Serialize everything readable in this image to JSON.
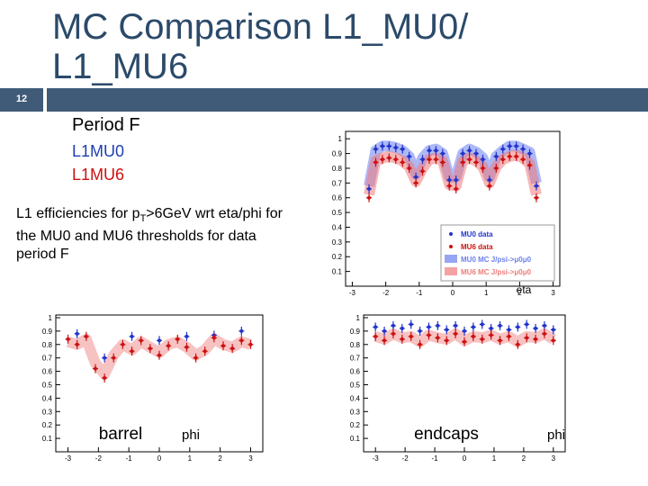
{
  "slide_number": "12",
  "title": {
    "prefix": "MC Comparison ",
    "part1": "L1_MU0/",
    "part2": "L1_MU6"
  },
  "period": "Period F",
  "thresholds": [
    "L1MU0",
    "L1MU6"
  ],
  "description": {
    "start": "L1 efficiencies for p",
    "sub": "T",
    "end": ">6GeV wrt eta/phi for the MU0 and MU6 thresholds for data period F"
  },
  "plots": [
    {
      "type": "scatter",
      "x_label": "eta",
      "xlim": [
        -3.2,
        3.2
      ],
      "ylim": [
        0,
        1.05
      ],
      "xticks": [
        -3,
        -2,
        -1,
        0,
        1,
        2,
        3
      ],
      "yticks": [
        0.1,
        0.2,
        0.3,
        0.4,
        0.5,
        0.6,
        0.7,
        0.8,
        0.9,
        1
      ],
      "series": [
        {
          "name": "MU0 MC J/psi->μ0μ0",
          "kind": "band",
          "color": "#6a7ff0",
          "x": [
            -2.5,
            -2.3,
            -2.1,
            -1.9,
            -1.7,
            -1.5,
            -1.3,
            -1.1,
            -0.9,
            -0.7,
            -0.5,
            -0.3,
            -0.1,
            0.1,
            0.3,
            0.5,
            0.7,
            0.9,
            1.1,
            1.3,
            1.5,
            1.7,
            1.9,
            2.1,
            2.3,
            2.5
          ],
          "values": [
            0.68,
            0.92,
            0.95,
            0.95,
            0.94,
            0.92,
            0.88,
            0.76,
            0.87,
            0.92,
            0.93,
            0.9,
            0.74,
            0.74,
            0.9,
            0.93,
            0.91,
            0.87,
            0.74,
            0.88,
            0.92,
            0.95,
            0.95,
            0.93,
            0.91,
            0.7
          ]
        },
        {
          "name": "MU6 MC J/psi->μ0μ0",
          "kind": "band",
          "color": "#f07a7a",
          "x": [
            -2.5,
            -2.3,
            -2.1,
            -1.9,
            -1.7,
            -1.5,
            -1.3,
            -1.1,
            -0.9,
            -0.7,
            -0.5,
            -0.3,
            -0.1,
            0.1,
            0.3,
            0.5,
            0.7,
            0.9,
            1.1,
            1.3,
            1.5,
            1.7,
            1.9,
            2.1,
            2.3,
            2.5
          ],
          "values": [
            0.62,
            0.85,
            0.87,
            0.88,
            0.87,
            0.85,
            0.81,
            0.71,
            0.8,
            0.86,
            0.87,
            0.85,
            0.69,
            0.68,
            0.85,
            0.87,
            0.85,
            0.81,
            0.7,
            0.81,
            0.86,
            0.88,
            0.89,
            0.87,
            0.83,
            0.62
          ]
        },
        {
          "name": "MU0 data",
          "kind": "points",
          "color": "#2233cc",
          "x": [
            -2.5,
            -2.3,
            -2.1,
            -1.9,
            -1.7,
            -1.5,
            -1.3,
            -1.1,
            -0.9,
            -0.7,
            -0.5,
            -0.3,
            -0.1,
            0.1,
            0.3,
            0.5,
            0.7,
            0.9,
            1.1,
            1.3,
            1.5,
            1.7,
            1.9,
            2.1,
            2.3,
            2.5
          ],
          "values": [
            0.66,
            0.93,
            0.95,
            0.95,
            0.94,
            0.93,
            0.88,
            0.74,
            0.86,
            0.92,
            0.92,
            0.9,
            0.72,
            0.72,
            0.9,
            0.92,
            0.9,
            0.86,
            0.72,
            0.88,
            0.93,
            0.95,
            0.95,
            0.93,
            0.9,
            0.68
          ]
        },
        {
          "name": "MU6 data",
          "kind": "points",
          "color": "#cc1111",
          "x": [
            -2.5,
            -2.3,
            -2.1,
            -1.9,
            -1.7,
            -1.5,
            -1.3,
            -1.1,
            -0.9,
            -0.7,
            -0.5,
            -0.3,
            -0.1,
            0.1,
            0.3,
            0.5,
            0.7,
            0.9,
            1.1,
            1.3,
            1.5,
            1.7,
            1.9,
            2.1,
            2.3,
            2.5
          ],
          "values": [
            0.6,
            0.84,
            0.86,
            0.87,
            0.86,
            0.84,
            0.8,
            0.7,
            0.78,
            0.86,
            0.86,
            0.84,
            0.68,
            0.66,
            0.84,
            0.86,
            0.84,
            0.8,
            0.68,
            0.8,
            0.86,
            0.88,
            0.88,
            0.86,
            0.82,
            0.6
          ]
        }
      ]
    },
    {
      "type": "scatter",
      "label": "barrel",
      "x_label": "phi",
      "xlim": [
        -3.4,
        3.4
      ],
      "ylim": [
        0,
        1.02
      ],
      "xticks": [
        -3,
        -2,
        -1,
        0,
        1,
        2,
        3
      ],
      "yticks": [
        0.1,
        0.2,
        0.3,
        0.4,
        0.5,
        0.6,
        0.7,
        0.8,
        0.9,
        1
      ],
      "series": [
        {
          "kind": "band",
          "color": "#f09090",
          "x": [
            -3.0,
            -2.7,
            -2.4,
            -2.1,
            -1.8,
            -1.5,
            -1.2,
            -0.9,
            -0.6,
            -0.3,
            0.0,
            0.3,
            0.6,
            0.9,
            1.2,
            1.5,
            1.8,
            2.1,
            2.4,
            2.7,
            3.0
          ],
          "values": [
            0.82,
            0.8,
            0.84,
            0.66,
            0.58,
            0.72,
            0.8,
            0.76,
            0.82,
            0.78,
            0.74,
            0.8,
            0.82,
            0.78,
            0.72,
            0.76,
            0.84,
            0.8,
            0.78,
            0.82,
            0.8
          ]
        },
        {
          "kind": "points",
          "color": "#2233cc",
          "x": [
            -2.7,
            -1.8,
            -0.9,
            0.0,
            0.9,
            1.8,
            2.7
          ],
          "values": [
            0.88,
            0.7,
            0.86,
            0.83,
            0.86,
            0.87,
            0.9
          ]
        },
        {
          "kind": "points",
          "color": "#cc1111",
          "x": [
            -3.0,
            -2.7,
            -2.4,
            -2.1,
            -1.8,
            -1.5,
            -1.2,
            -0.9,
            -0.6,
            -0.3,
            0.0,
            0.3,
            0.6,
            0.9,
            1.2,
            1.5,
            1.8,
            2.1,
            2.4,
            2.7,
            3.0
          ],
          "values": [
            0.84,
            0.8,
            0.86,
            0.62,
            0.55,
            0.7,
            0.8,
            0.75,
            0.83,
            0.77,
            0.72,
            0.79,
            0.84,
            0.78,
            0.7,
            0.75,
            0.85,
            0.79,
            0.77,
            0.83,
            0.8
          ]
        }
      ]
    },
    {
      "type": "scatter",
      "label": "endcaps",
      "x_label": "phi",
      "xlim": [
        -3.4,
        3.4
      ],
      "ylim": [
        0,
        1.02
      ],
      "xticks": [
        -3,
        -2,
        -1,
        0,
        1,
        2,
        3
      ],
      "yticks": [
        0.1,
        0.2,
        0.3,
        0.4,
        0.5,
        0.6,
        0.7,
        0.8,
        0.9,
        1
      ],
      "series": [
        {
          "kind": "band",
          "color": "#f09090",
          "x": [
            -3.0,
            -2.7,
            -2.4,
            -2.1,
            -1.8,
            -1.5,
            -1.2,
            -0.9,
            -0.6,
            -0.3,
            0.0,
            0.3,
            0.6,
            0.9,
            1.2,
            1.5,
            1.8,
            2.1,
            2.4,
            2.7,
            3.0
          ],
          "values": [
            0.86,
            0.84,
            0.88,
            0.85,
            0.86,
            0.82,
            0.87,
            0.85,
            0.84,
            0.88,
            0.83,
            0.86,
            0.85,
            0.87,
            0.84,
            0.86,
            0.82,
            0.86,
            0.85,
            0.88,
            0.84
          ]
        },
        {
          "kind": "points",
          "color": "#2233cc",
          "x": [
            -3.0,
            -2.7,
            -2.4,
            -2.1,
            -1.8,
            -1.5,
            -1.2,
            -0.9,
            -0.6,
            -0.3,
            0.0,
            0.3,
            0.6,
            0.9,
            1.2,
            1.5,
            1.8,
            2.1,
            2.4,
            2.7,
            3.0
          ],
          "values": [
            0.93,
            0.9,
            0.94,
            0.92,
            0.95,
            0.9,
            0.93,
            0.94,
            0.91,
            0.94,
            0.9,
            0.93,
            0.95,
            0.92,
            0.94,
            0.91,
            0.93,
            0.95,
            0.92,
            0.94,
            0.91
          ]
        },
        {
          "kind": "points",
          "color": "#cc1111",
          "x": [
            -3.0,
            -2.7,
            -2.4,
            -2.1,
            -1.8,
            -1.5,
            -1.2,
            -0.9,
            -0.6,
            -0.3,
            0.0,
            0.3,
            0.6,
            0.9,
            1.2,
            1.5,
            1.8,
            2.1,
            2.4,
            2.7,
            3.0
          ],
          "values": [
            0.86,
            0.83,
            0.88,
            0.84,
            0.86,
            0.8,
            0.87,
            0.85,
            0.83,
            0.88,
            0.82,
            0.86,
            0.84,
            0.87,
            0.83,
            0.86,
            0.8,
            0.85,
            0.84,
            0.88,
            0.83
          ]
        }
      ]
    }
  ]
}
